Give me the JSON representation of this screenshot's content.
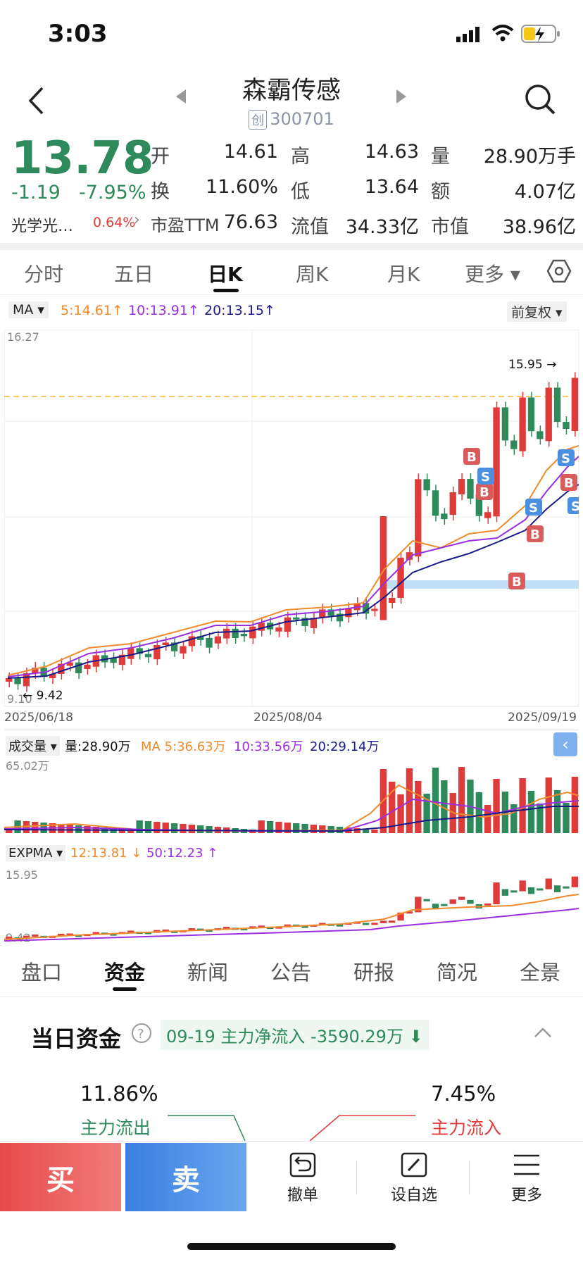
{
  "status": {
    "time": "3:03"
  },
  "header": {
    "name": "森霸传感",
    "code_badge": "创",
    "code": "300701"
  },
  "quote": {
    "price": "13.78",
    "change": "-1.19",
    "change_pct": "-7.95%",
    "sector": "光学光…",
    "sector_pct": "0.64%",
    "open_label": "开",
    "open": "14.61",
    "high_label": "高",
    "high": "14.63",
    "volume_label": "量",
    "volume": "28.90万手",
    "turnover_label": "换",
    "turnover": "11.60%",
    "low_label": "低",
    "low": "13.64",
    "amount_label": "额",
    "amount": "4.07亿",
    "pe_label": "市盈TTM",
    "pe": "76.63",
    "float_label": "流值",
    "float_cap": "34.33亿",
    "mcap_label": "市值",
    "mcap": "38.96亿"
  },
  "chart_tabs": [
    "分时",
    "五日",
    "日K",
    "周K",
    "月K",
    "更多 ▾"
  ],
  "ma": {
    "label": "MA",
    "ma5": "5:14.61",
    "ma10": "10:13.91",
    "ma20": "20:13.15",
    "adjust": "前复权"
  },
  "kline": {
    "y_top": "16.27",
    "y_bottom": "9.10",
    "max_label": "15.95",
    "min_label": "9.42",
    "dates": [
      "2025/06/18",
      "2025/08/04",
      "2025/09/19"
    ]
  },
  "volume": {
    "label": "成交量",
    "vol": "量:28.90万",
    "ma5": "MA 5:36.63万",
    "ma10": "10:33.56万",
    "ma20": "20:29.14万",
    "y_top": "65.02万"
  },
  "expma": {
    "label": "EXPMA",
    "e12": "12:13.81",
    "e50": "50:12.23",
    "y_top": "15.95",
    "y_bottom": "9.42"
  },
  "bottom_tabs": [
    "盘口",
    "资金",
    "新闻",
    "公告",
    "研报",
    "简况",
    "全景"
  ],
  "fund": {
    "title": "当日资金",
    "date": "09-19",
    "net_label": "主力净流入",
    "net_value": "-3590.29万",
    "outflow_pct": "11.86%",
    "outflow_label": "主力流出",
    "inflow_pct": "7.45%",
    "inflow_label": "主力流入"
  },
  "actions": {
    "buy": "买",
    "sell": "卖",
    "cancel": "撤单",
    "watch": "设自选",
    "more": "更多"
  },
  "colors": {
    "up": "#e03b3b",
    "down": "#2e8a5b",
    "ma5": "#f08a2c",
    "ma10": "#9b2fe0",
    "ma20": "#1a1a8a"
  }
}
